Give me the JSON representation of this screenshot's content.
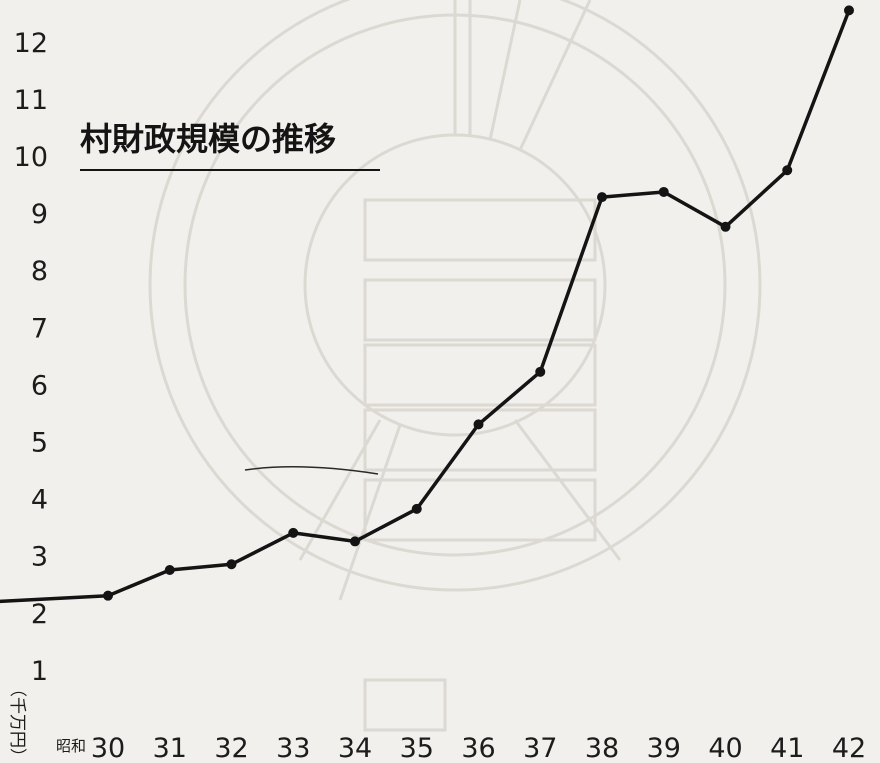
{
  "chart_data": {
    "type": "line",
    "title": "村財政規模の推移",
    "unit_label": "（千万円）",
    "era_label": "昭和",
    "x": [
      "30",
      "31",
      "32",
      "33",
      "34",
      "35",
      "36",
      "37",
      "38",
      "39",
      "40",
      "41",
      "42"
    ],
    "series": [
      {
        "values": [
          2.3,
          2.75,
          2.85,
          3.4,
          3.25,
          3.82,
          5.3,
          6.22,
          9.28,
          9.37,
          8.76,
          9.75,
          12.55
        ]
      }
    ],
    "start_value": 2.2,
    "yticks": [
      "1",
      "2",
      "3",
      "4",
      "5",
      "6",
      "7",
      "8",
      "9",
      "10",
      "11",
      "12"
    ],
    "ylim": [
      0,
      12.6
    ],
    "grid": false,
    "line_color": "#141414"
  }
}
